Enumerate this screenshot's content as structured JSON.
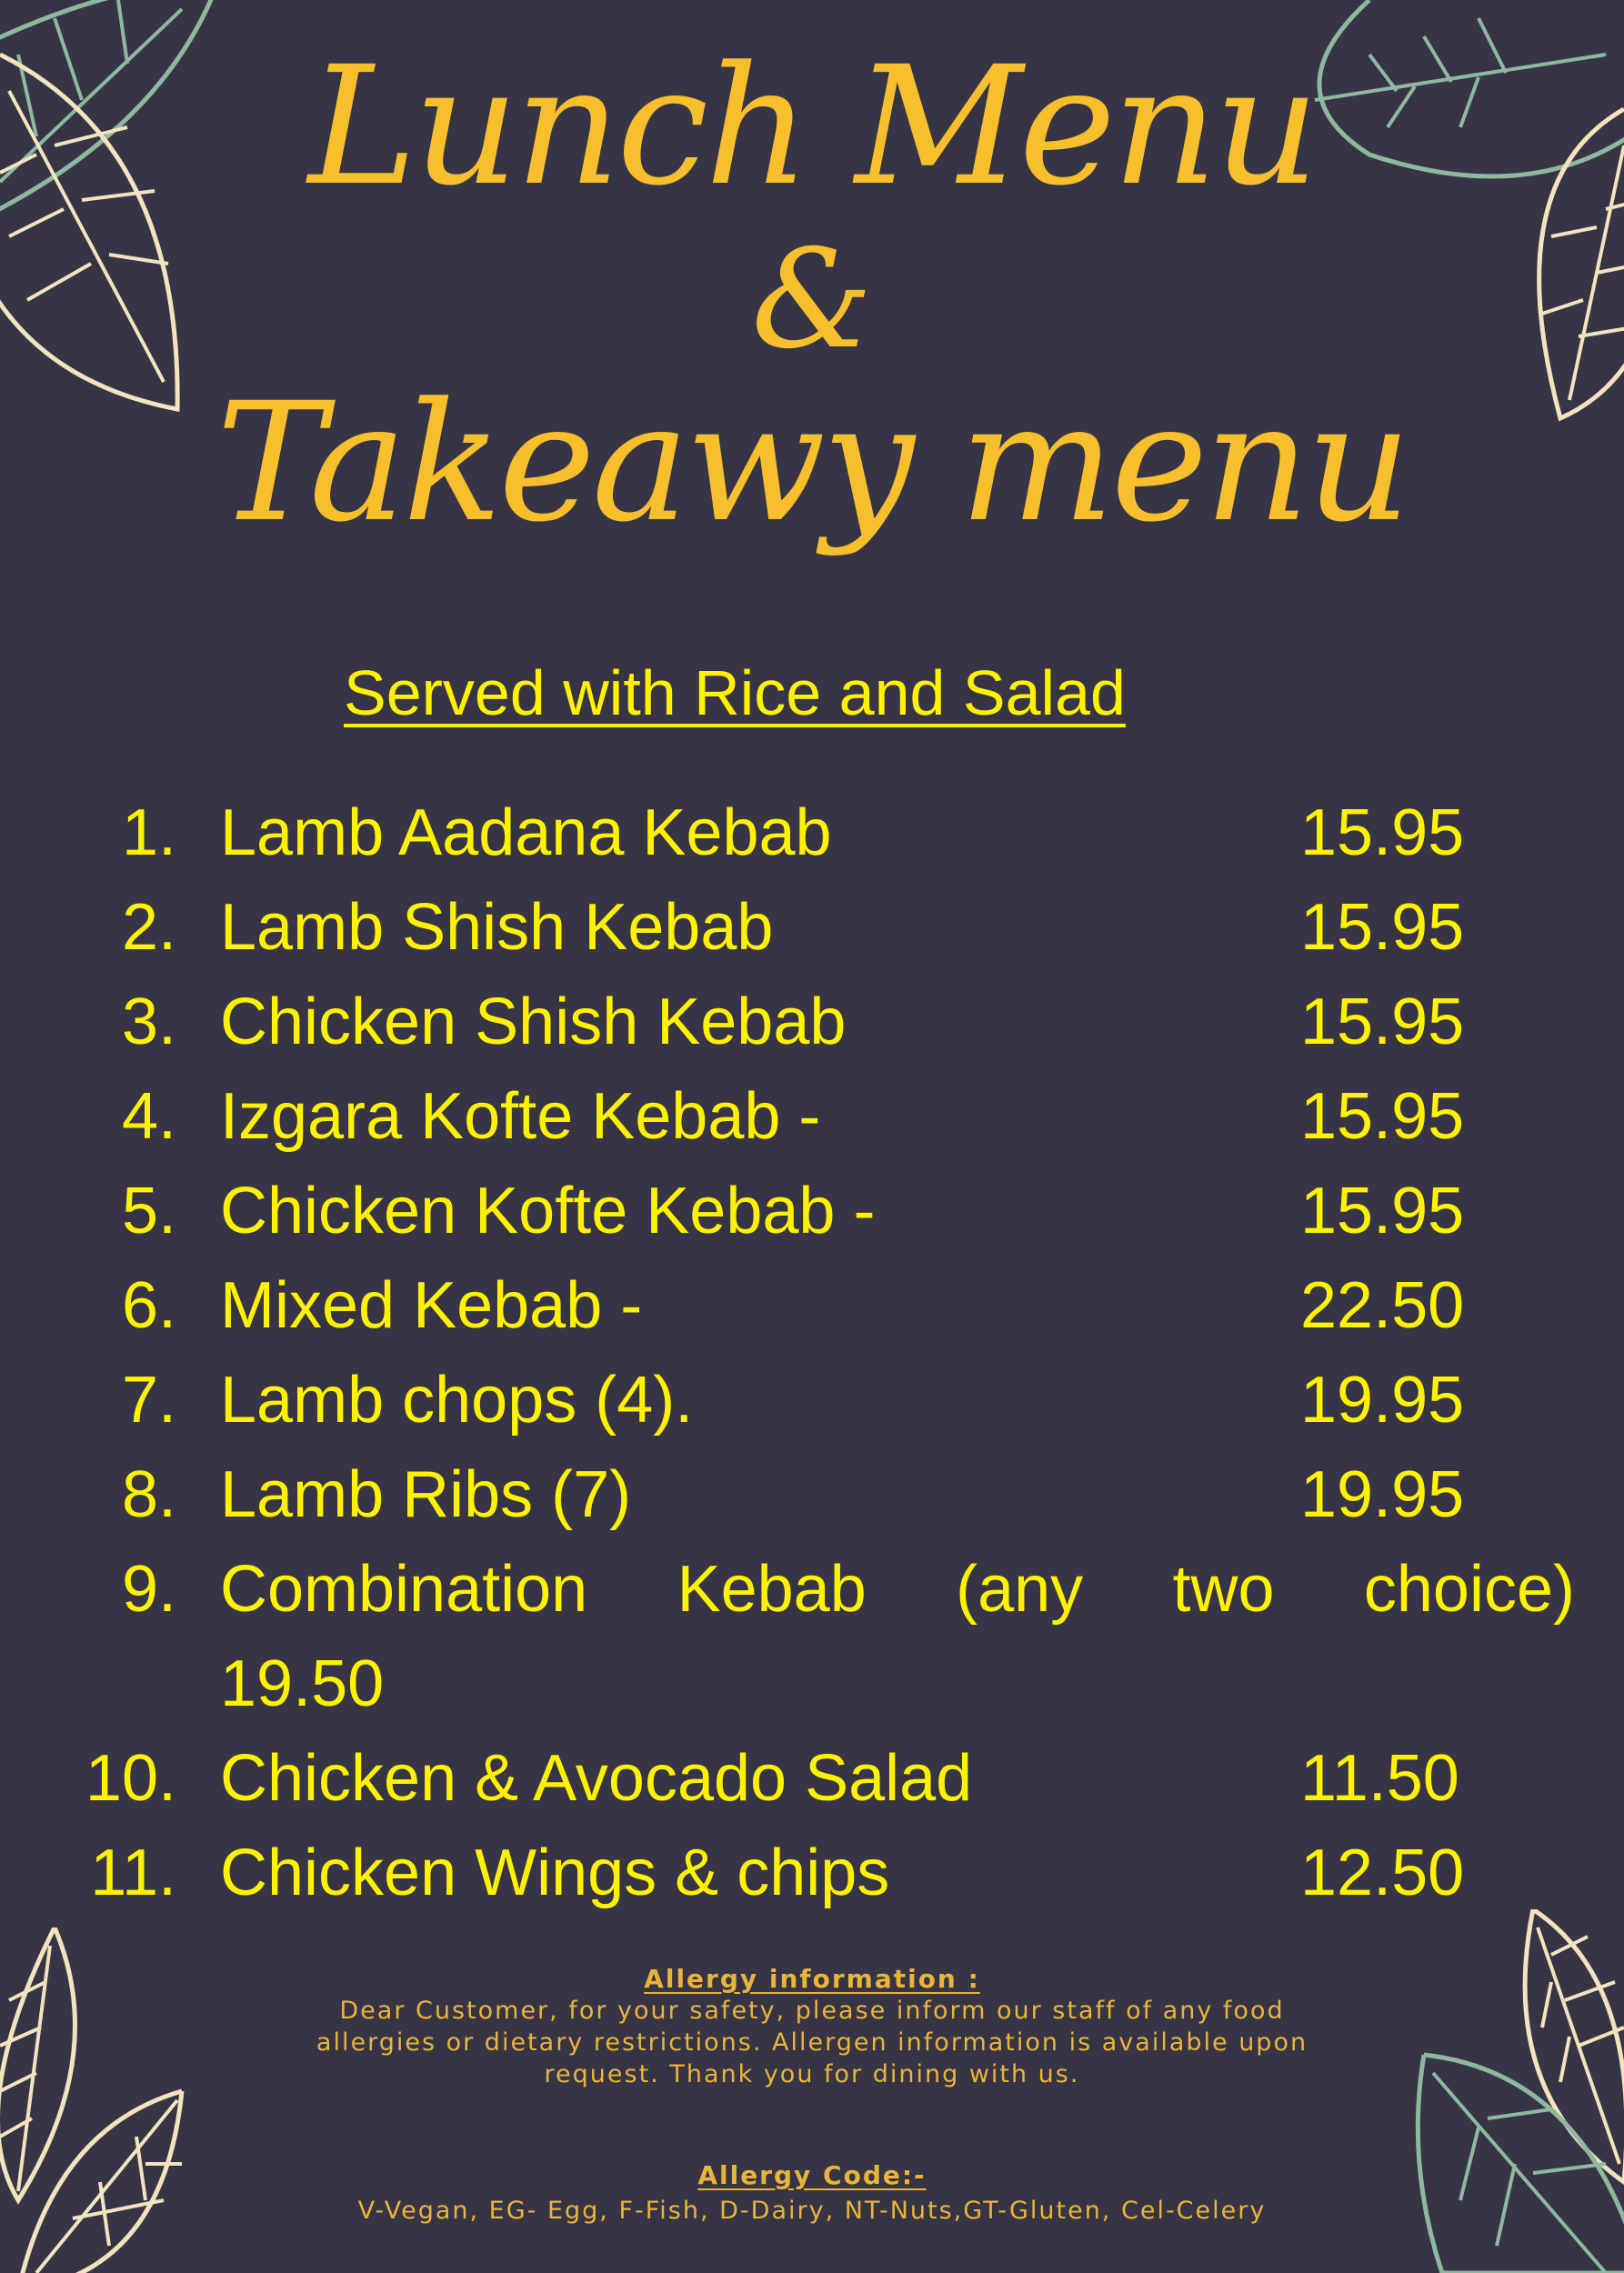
{
  "title": {
    "line1": "Lunch Menu",
    "line2": "&",
    "line3": "Takeawy menu"
  },
  "subtitle": "Served with Rice and Salad",
  "items": [
    {
      "num": "1.",
      "name": "Lamb Aadana Kebab",
      "price": "15.95"
    },
    {
      "num": "2.",
      "name": "Lamb Shish Kebab",
      "price": "15.95"
    },
    {
      "num": "3.",
      "name": "Chicken Shish Kebab",
      "price": "15.95"
    },
    {
      "num": "4.",
      "name": "Izgara Kofte Kebab -",
      "price": "15.95"
    },
    {
      "num": "5.",
      "name": "Chicken Kofte Kebab -",
      "price": "15.95"
    },
    {
      "num": "6.",
      "name": "Mixed Kebab -",
      "price": "22.50"
    },
    {
      "num": "7.",
      "name": "Lamb chops (4).",
      "price": "19.95"
    },
    {
      "num": "8.",
      "name": "Lamb Ribs (7)",
      "price": "19.95"
    },
    {
      "num": "9.",
      "name": "Combination Kebab (any two choice)",
      "price": "19.50"
    },
    {
      "num": "10.",
      "name": "Chicken & Avocado Salad",
      "price": "11.50"
    },
    {
      "num": "11.",
      "name": "Chicken Wings & chips",
      "price": "12.50"
    }
  ],
  "allergy": {
    "heading": "Allergy information :",
    "lines": [
      "Dear Customer, for your safety, please inform our staff of any food",
      "allergies or dietary restrictions. Allergen information is available upon",
      "request. Thank you for dining with us."
    ],
    "code_heading": "Allergy Code:-",
    "codes": "V-Vegan, EG- Egg, F-Fish, D-Dairy, NT-Nuts,GT-Gluten, Cel-Celery"
  },
  "colors": {
    "background": "#373545",
    "title": "#F7BF2C",
    "menu_text": "#FFF200",
    "allergy_text": "#E9B43A",
    "leaf_cream": "#F3E3BE",
    "leaf_green": "#8FB8A0"
  }
}
